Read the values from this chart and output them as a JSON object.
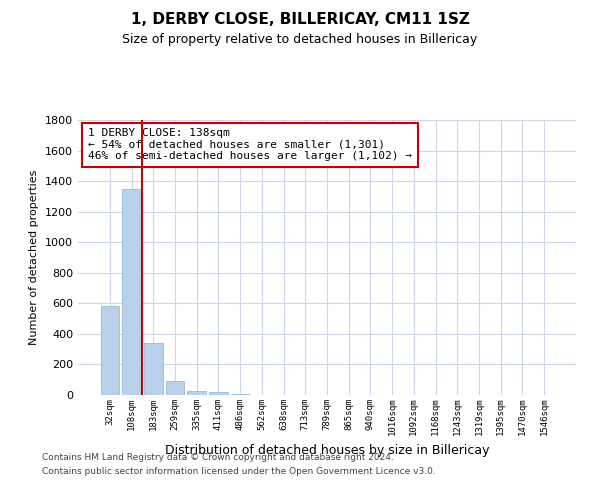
{
  "title": "1, DERBY CLOSE, BILLERICAY, CM11 1SZ",
  "subtitle": "Size of property relative to detached houses in Billericay",
  "xlabel": "Distribution of detached houses by size in Billericay",
  "ylabel": "Number of detached properties",
  "categories": [
    "32sqm",
    "108sqm",
    "183sqm",
    "259sqm",
    "335sqm",
    "411sqm",
    "486sqm",
    "562sqm",
    "638sqm",
    "713sqm",
    "789sqm",
    "865sqm",
    "940sqm",
    "1016sqm",
    "1092sqm",
    "1168sqm",
    "1243sqm",
    "1319sqm",
    "1395sqm",
    "1470sqm",
    "1546sqm"
  ],
  "values": [
    585,
    1350,
    340,
    90,
    28,
    18,
    5,
    0,
    0,
    0,
    0,
    0,
    0,
    0,
    0,
    0,
    0,
    0,
    0,
    0,
    0
  ],
  "bar_color": "#b8d0ea",
  "bar_edge_color": "#8ab0d8",
  "vline_x": 1.5,
  "vline_color": "#cc0000",
  "annotation_text": "1 DERBY CLOSE: 138sqm\n← 54% of detached houses are smaller (1,301)\n46% of semi-detached houses are larger (1,102) →",
  "annotation_box_color": "#ffffff",
  "annotation_box_edge": "#cc0000",
  "ylim": [
    0,
    1800
  ],
  "yticks": [
    0,
    200,
    400,
    600,
    800,
    1000,
    1200,
    1400,
    1600,
    1800
  ],
  "background_color": "#ffffff",
  "grid_color": "#ccd6e8",
  "footer_line1": "Contains HM Land Registry data © Crown copyright and database right 2024.",
  "footer_line2": "Contains public sector information licensed under the Open Government Licence v3.0."
}
